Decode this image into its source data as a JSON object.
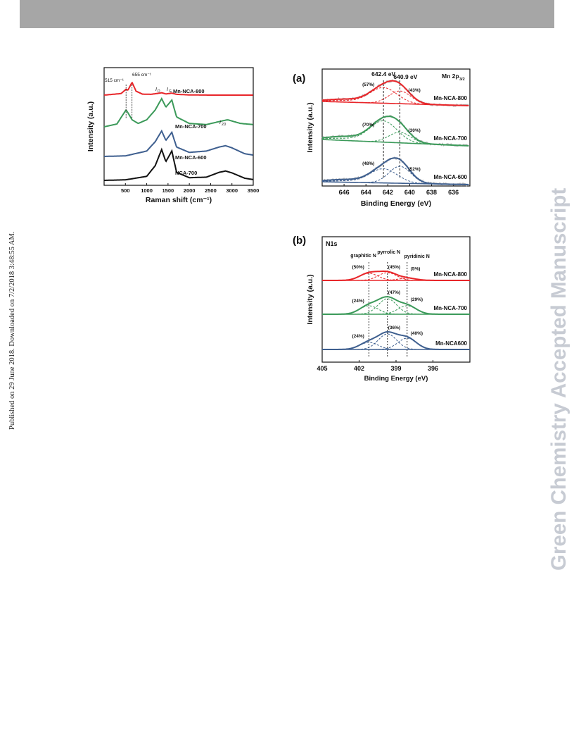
{
  "header": {
    "bar_color": "#a6a6a6"
  },
  "sidebar": {
    "published_note": "Published on 29 June 2018. Downloaded on 7/2/2018 3:48:55 AM.",
    "journal_label": "Green Chemistry Accepted Manuscript"
  },
  "colors": {
    "red": "#e8262a",
    "green": "#3c9a5a",
    "blue": "#3e5f8f",
    "black": "#111111",
    "gray": "#b8b8b8"
  },
  "chart_data": [
    {
      "type": "line",
      "panel": "raman",
      "xlabel": "Raman shift (cm⁻¹)",
      "ylabel": "Intensity (a.u.)",
      "xlim": [
        0,
        3500
      ],
      "xticks": [
        "500",
        "1000",
        "1500",
        "2000",
        "2500",
        "3000",
        "3500"
      ],
      "annotations": [
        "515 cm⁻¹",
        "655 cm⁻¹",
        "I_D",
        "I_G",
        "I_2D"
      ],
      "series": [
        {
          "name": "Mn-NCA-800",
          "color": "red",
          "x": [
            0,
            400,
            515,
            560,
            655,
            750,
            900,
            1100,
            1300,
            1350,
            1450,
            1590,
            1700,
            2000,
            2500,
            2800,
            3000,
            3500
          ],
          "y": [
            0.0,
            0.08,
            0.3,
            0.25,
            0.65,
            0.2,
            0.05,
            0.04,
            0.1,
            0.12,
            0.06,
            0.1,
            0.04,
            0.01,
            0.0,
            0.0,
            0.0,
            0.0
          ]
        },
        {
          "name": "Mn-NCA-700",
          "color": "green",
          "x": [
            0,
            300,
            450,
            515,
            560,
            655,
            800,
            1000,
            1200,
            1350,
            1450,
            1590,
            1700,
            2000,
            2400,
            2800,
            2900,
            3200,
            3500
          ],
          "y": [
            0.0,
            0.1,
            0.45,
            0.6,
            0.5,
            0.25,
            0.12,
            0.25,
            0.6,
            1.0,
            0.7,
            0.95,
            0.35,
            0.12,
            0.08,
            0.22,
            0.25,
            0.12,
            0.08
          ]
        },
        {
          "name": "Mn-NCA-600",
          "color": "blue",
          "x": [
            0,
            500,
            1000,
            1200,
            1350,
            1450,
            1590,
            1700,
            2000,
            2400,
            2700,
            2850,
            3000,
            3300,
            3500
          ],
          "y": [
            0.0,
            0.02,
            0.2,
            0.55,
            0.95,
            0.6,
            0.9,
            0.35,
            0.15,
            0.2,
            0.35,
            0.4,
            0.32,
            0.1,
            0.05
          ]
        },
        {
          "name": "NCA-700",
          "color": "black",
          "x": [
            0,
            500,
            1000,
            1200,
            1350,
            1450,
            1590,
            1700,
            2000,
            2400,
            2700,
            2850,
            3000,
            3300,
            3500
          ],
          "y": [
            0.0,
            0.02,
            0.15,
            0.55,
            1.15,
            0.7,
            1.1,
            0.3,
            0.1,
            0.12,
            0.3,
            0.35,
            0.28,
            0.08,
            0.03
          ]
        }
      ]
    },
    {
      "type": "line",
      "panel": "a",
      "panel_label": "(a)",
      "xlabel": "Binding Energy (eV)",
      "ylabel": "Intensity (a.u.)",
      "xlim": [
        648,
        634.5
      ],
      "xticks": [
        "646",
        "644",
        "642",
        "640",
        "638",
        "636"
      ],
      "corner_label": "Mn 2p",
      "corner_sub": "3/2",
      "peak_labels": [
        "642.4 eV",
        "640.9 eV"
      ],
      "peaks_ev": [
        642.4,
        640.9
      ],
      "spectra": [
        {
          "name": "Mn-NCA-800",
          "color": "red",
          "left_pct": "(57%)",
          "right_pct": "(43%)"
        },
        {
          "name": "Mn-NCA-700",
          "color": "green",
          "left_pct": "(70%)",
          "right_pct": "(30%)"
        },
        {
          "name": "Mn-NCA-600",
          "color": "blue",
          "left_pct": "(48%)",
          "right_pct": "(52%)"
        }
      ]
    },
    {
      "type": "line",
      "panel": "b",
      "panel_label": "(b)",
      "xlabel": "Binding Energy (eV)",
      "ylabel": "Intensity (a.u.)",
      "xlim": [
        405,
        393
      ],
      "xticks": [
        "405",
        "402",
        "399",
        "396"
      ],
      "corner_label": "N1s",
      "peak_names": [
        "graphitic N",
        "pyrrolic N",
        "pyridinic N"
      ],
      "peaks_ev": [
        401.2,
        399.7,
        398.1
      ],
      "spectra": [
        {
          "name": "Mn-NCA-800",
          "color": "red",
          "pcts": [
            "(50%)",
            "(45%)",
            "(5%)"
          ]
        },
        {
          "name": "Mn-NCA-700",
          "color": "green",
          "pcts": [
            "(24%)",
            "(47%)",
            "(29%)"
          ]
        },
        {
          "name": "Mn-NCA600",
          "color": "blue",
          "pcts": [
            "(24%)",
            "(36%)",
            "(40%)"
          ]
        }
      ]
    }
  ]
}
